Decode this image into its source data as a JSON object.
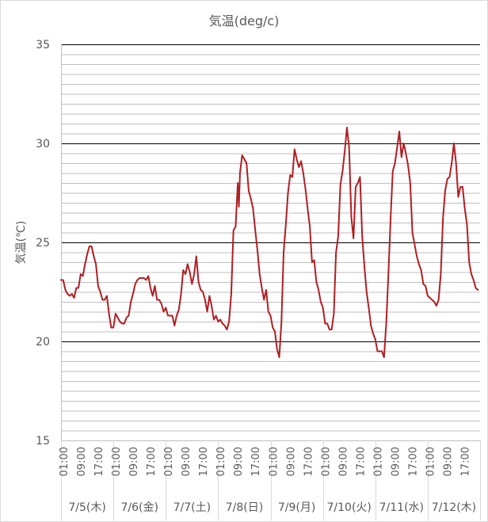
{
  "colors": {
    "series_line": "#b01f24",
    "major_grid": "#000000",
    "minor_grid": "#bfbfbf",
    "axis_text": "#595959",
    "chart_border": "#d9d9d9"
  },
  "chart_data": {
    "type": "line",
    "title": "気温(deg/c)",
    "xlabel": "",
    "ylabel": "気温(℃)",
    "ylim": [
      15,
      35
    ],
    "y_major_ticks": [
      15,
      20,
      25,
      30,
      35
    ],
    "y_minor_step": 0.5,
    "grid": true,
    "legend": "none",
    "x_time_labels": [
      "01:00",
      "09:00",
      "17:00"
    ],
    "date_labels": [
      "7/5(木)",
      "7/6(金)",
      "7/7(土)",
      "7/8(日)",
      "7/9(月)",
      "7/10(火)",
      "7/11(水)",
      "7/12(木)"
    ],
    "x_hour_range": [
      0,
      192
    ],
    "series": [
      {
        "points": [
          [
            0,
            23.1
          ],
          [
            1,
            23.1
          ],
          [
            2,
            22.6
          ],
          [
            3,
            22.4
          ],
          [
            4,
            22.3
          ],
          [
            5,
            22.4
          ],
          [
            6,
            22.2
          ],
          [
            7,
            22.7
          ],
          [
            8,
            22.7
          ],
          [
            9,
            23.4
          ],
          [
            10,
            23.3
          ],
          [
            11,
            23.9
          ],
          [
            12,
            24.4
          ],
          [
            13,
            24.8
          ],
          [
            14,
            24.8
          ],
          [
            15,
            24.3
          ],
          [
            16,
            23.9
          ],
          [
            17,
            22.8
          ],
          [
            18,
            22.5
          ],
          [
            19,
            22.1
          ],
          [
            20,
            22.1
          ],
          [
            21,
            22.3
          ],
          [
            22,
            21.4
          ],
          [
            23,
            20.7
          ],
          [
            24,
            20.7
          ],
          [
            25,
            21.4
          ],
          [
            26,
            21.2
          ],
          [
            27,
            21.0
          ],
          [
            28,
            20.9
          ],
          [
            29,
            20.9
          ],
          [
            30,
            21.2
          ],
          [
            31,
            21.3
          ],
          [
            32,
            22.0
          ],
          [
            33,
            22.4
          ],
          [
            34,
            22.9
          ],
          [
            35,
            23.1
          ],
          [
            36,
            23.2
          ],
          [
            37,
            23.2
          ],
          [
            38,
            23.2
          ],
          [
            39,
            23.1
          ],
          [
            40,
            23.3
          ],
          [
            41,
            22.7
          ],
          [
            42,
            22.3
          ],
          [
            43,
            22.8
          ],
          [
            44,
            22.1
          ],
          [
            45,
            22.1
          ],
          [
            46,
            21.9
          ],
          [
            47,
            21.5
          ],
          [
            48,
            21.7
          ],
          [
            49,
            21.3
          ],
          [
            50,
            21.3
          ],
          [
            51,
            21.3
          ],
          [
            52,
            20.8
          ],
          [
            53,
            21.3
          ],
          [
            54,
            21.6
          ],
          [
            55,
            22.4
          ],
          [
            56,
            23.6
          ],
          [
            57,
            23.4
          ],
          [
            58,
            23.9
          ],
          [
            59,
            23.5
          ],
          [
            60,
            22.9
          ],
          [
            61,
            23.4
          ],
          [
            62,
            24.3
          ],
          [
            63,
            23.0
          ],
          [
            64,
            22.6
          ],
          [
            65,
            22.5
          ],
          [
            66,
            22.1
          ],
          [
            67,
            21.5
          ],
          [
            68,
            22.3
          ],
          [
            69,
            21.8
          ],
          [
            70,
            21.1
          ],
          [
            71,
            21.3
          ],
          [
            72,
            21.0
          ],
          [
            73,
            21.1
          ],
          [
            74,
            20.9
          ],
          [
            75,
            20.8
          ],
          [
            76,
            20.6
          ],
          [
            77,
            21.0
          ],
          [
            78,
            22.4
          ],
          [
            79,
            25.6
          ],
          [
            80,
            25.8
          ],
          [
            81,
            28.0
          ],
          [
            81.5,
            26.8
          ],
          [
            82,
            28.5
          ],
          [
            83,
            29.4
          ],
          [
            84,
            29.2
          ],
          [
            85,
            29.0
          ],
          [
            86,
            27.6
          ],
          [
            87,
            27.2
          ],
          [
            88,
            26.7
          ],
          [
            89,
            25.6
          ],
          [
            90,
            24.6
          ],
          [
            91,
            23.4
          ],
          [
            92,
            22.7
          ],
          [
            93,
            22.1
          ],
          [
            94,
            22.6
          ],
          [
            95,
            21.5
          ],
          [
            96,
            21.3
          ],
          [
            97,
            20.7
          ],
          [
            98,
            20.5
          ],
          [
            99,
            19.6
          ],
          [
            100,
            19.2
          ],
          [
            101,
            21.0
          ],
          [
            102,
            24.5
          ],
          [
            103,
            25.9
          ],
          [
            104,
            27.5
          ],
          [
            105,
            28.4
          ],
          [
            106,
            28.3
          ],
          [
            107,
            29.7
          ],
          [
            108,
            29.2
          ],
          [
            109,
            28.8
          ],
          [
            110,
            29.1
          ],
          [
            111,
            28.5
          ],
          [
            112,
            27.7
          ],
          [
            113,
            26.7
          ],
          [
            114,
            25.8
          ],
          [
            115,
            24.0
          ],
          [
            116,
            24.1
          ],
          [
            117,
            23.0
          ],
          [
            118,
            22.6
          ],
          [
            119,
            22.0
          ],
          [
            120,
            21.7
          ],
          [
            121,
            20.9
          ],
          [
            122,
            20.9
          ],
          [
            123,
            20.6
          ],
          [
            124,
            20.6
          ],
          [
            125,
            21.4
          ],
          [
            126,
            24.5
          ],
          [
            127,
            25.3
          ],
          [
            128,
            27.9
          ],
          [
            129,
            28.6
          ],
          [
            130,
            29.6
          ],
          [
            131,
            30.8
          ],
          [
            132,
            29.8
          ],
          [
            133,
            26.3
          ],
          [
            134,
            25.2
          ],
          [
            135,
            27.8
          ],
          [
            136,
            28.0
          ],
          [
            137,
            28.3
          ],
          [
            138,
            25.3
          ],
          [
            139,
            23.8
          ],
          [
            140,
            22.5
          ],
          [
            141,
            21.7
          ],
          [
            142,
            20.8
          ],
          [
            143,
            20.4
          ],
          [
            144,
            20.1
          ],
          [
            145,
            19.5
          ],
          [
            146,
            19.5
          ],
          [
            147,
            19.5
          ],
          [
            148,
            19.2
          ],
          [
            149,
            20.9
          ],
          [
            150,
            23.4
          ],
          [
            151,
            26.2
          ],
          [
            152,
            28.6
          ],
          [
            153,
            29.0
          ],
          [
            154,
            29.8
          ],
          [
            155,
            30.6
          ],
          [
            156,
            29.3
          ],
          [
            157,
            30.0
          ],
          [
            158,
            29.5
          ],
          [
            159,
            28.9
          ],
          [
            160,
            28.0
          ],
          [
            161,
            25.5
          ],
          [
            162,
            24.9
          ],
          [
            163,
            24.3
          ],
          [
            164,
            23.9
          ],
          [
            165,
            23.6
          ],
          [
            166,
            22.9
          ],
          [
            167,
            22.8
          ],
          [
            168,
            22.3
          ],
          [
            169,
            22.2
          ],
          [
            170,
            22.1
          ],
          [
            171,
            22.0
          ],
          [
            172,
            21.8
          ],
          [
            173,
            22.1
          ],
          [
            174,
            23.4
          ],
          [
            175,
            26.2
          ],
          [
            176,
            27.6
          ],
          [
            177,
            28.2
          ],
          [
            178,
            28.3
          ],
          [
            179,
            29.0
          ],
          [
            180,
            30.0
          ],
          [
            181,
            29.0
          ],
          [
            182,
            27.3
          ],
          [
            183,
            27.8
          ],
          [
            184,
            27.8
          ],
          [
            185,
            26.7
          ],
          [
            186,
            25.9
          ],
          [
            187,
            24.0
          ],
          [
            188,
            23.4
          ],
          [
            189,
            23.1
          ],
          [
            190,
            22.7
          ],
          [
            191,
            22.6
          ]
        ]
      }
    ]
  }
}
